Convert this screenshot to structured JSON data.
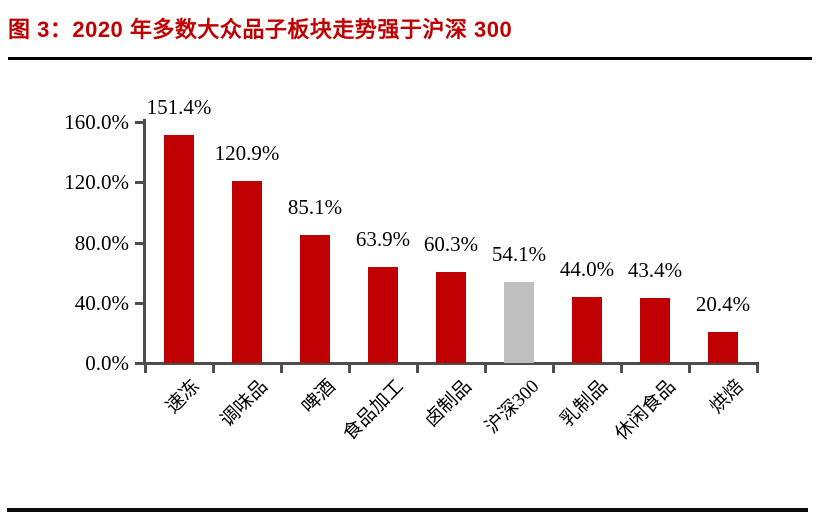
{
  "header": {
    "title": "图 3：2020 年多数大众品子板块走势强于沪深 300"
  },
  "chart_data": {
    "type": "bar",
    "title": "2020 年多数大众品子板块走势强于沪深 300",
    "categories": [
      "速冻",
      "调味品",
      "啤酒",
      "食品加工",
      "卤制品",
      "沪深300",
      "乳制品",
      "休闲食品",
      "烘焙"
    ],
    "values": [
      151.4,
      120.9,
      85.1,
      63.9,
      60.3,
      54.1,
      44.0,
      43.4,
      20.4
    ],
    "data_labels": [
      "151.4%",
      "120.9%",
      "85.1%",
      "63.9%",
      "60.3%",
      "54.1%",
      "44.0%",
      "43.4%",
      "20.4%"
    ],
    "xlabel": "",
    "ylabel": "",
    "ylim": [
      0,
      160
    ],
    "ytick_step": 40,
    "ytick_labels": [
      "0.0%",
      "40.0%",
      "80.0%",
      "120.0%",
      "160.0%"
    ],
    "grid": false,
    "legend": "none",
    "highlight_category": "沪深300",
    "colors": {
      "bar": "#C00000",
      "highlight_bar": "#BFBFBF",
      "axis": "#4D4D4D",
      "title": "#C00000",
      "label_text": "#000000"
    }
  }
}
